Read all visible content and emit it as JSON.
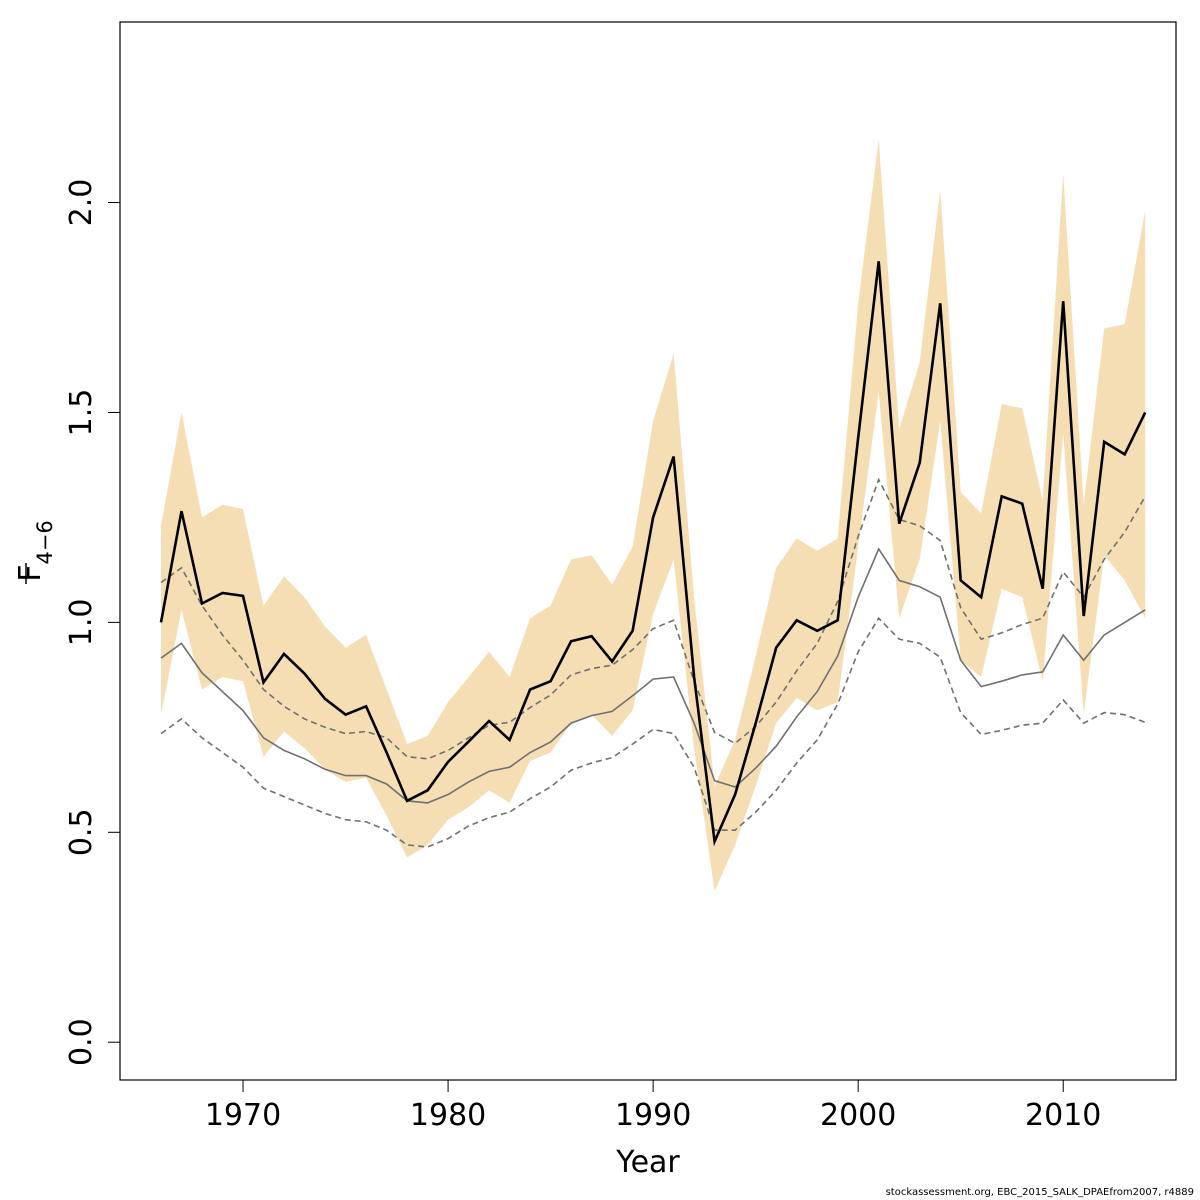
{
  "chart_data": {
    "type": "line",
    "xlabel": "Year",
    "ylabel": "F",
    "ylabel_subscript": "4−6",
    "xlim": [
      1964,
      2015.5
    ],
    "ylim": [
      -0.09,
      2.43
    ],
    "x_ticks": [
      1970,
      1980,
      1990,
      2000,
      2010
    ],
    "y_ticks": [
      0.0,
      0.5,
      1.0,
      1.5,
      2.0
    ],
    "x_tick_labels": [
      "1970",
      "1980",
      "1990",
      "2000",
      "2010"
    ],
    "y_tick_labels": [
      "0.0",
      "0.5",
      "1.0",
      "1.5",
      "2.0"
    ],
    "grid": false,
    "x": [
      1966,
      1967,
      1968,
      1969,
      1970,
      1971,
      1972,
      1973,
      1974,
      1975,
      1976,
      1977,
      1978,
      1979,
      1980,
      1981,
      1982,
      1983,
      1984,
      1985,
      1986,
      1987,
      1988,
      1989,
      1990,
      1991,
      1992,
      1993,
      1994,
      1995,
      1996,
      1997,
      1998,
      1999,
      2000,
      2001,
      2002,
      2003,
      2004,
      2005,
      2006,
      2007,
      2008,
      2009,
      2010,
      2011,
      2012,
      2013,
      2014
    ],
    "series": [
      {
        "role": "estimate",
        "color": "#000000",
        "values": [
          1.0,
          1.265,
          1.045,
          1.07,
          1.063,
          0.857,
          0.925,
          0.878,
          0.818,
          0.78,
          0.8,
          0.69,
          0.575,
          0.6,
          0.668,
          0.716,
          0.765,
          0.72,
          0.84,
          0.86,
          0.955,
          0.967,
          0.907,
          0.98,
          1.25,
          1.395,
          0.87,
          0.478,
          0.59,
          0.76,
          0.94,
          1.005,
          0.98,
          1.005,
          1.44,
          1.86,
          1.235,
          1.38,
          1.76,
          1.1,
          1.06,
          1.3,
          1.283,
          1.08,
          1.765,
          1.015,
          1.43,
          1.4,
          1.5
        ]
      },
      {
        "role": "band",
        "color": "#f5deb3",
        "lower": [
          0.78,
          1.03,
          0.84,
          0.87,
          0.86,
          0.68,
          0.74,
          0.7,
          0.65,
          0.62,
          0.63,
          0.54,
          0.44,
          0.47,
          0.53,
          0.56,
          0.6,
          0.57,
          0.67,
          0.69,
          0.76,
          0.78,
          0.73,
          0.79,
          1.02,
          1.15,
          0.7,
          0.36,
          0.47,
          0.61,
          0.76,
          0.82,
          0.79,
          0.81,
          1.18,
          1.55,
          1.01,
          1.15,
          1.48,
          0.91,
          0.87,
          1.08,
          1.06,
          0.86,
          1.45,
          0.78,
          1.16,
          1.1,
          1.01
        ],
        "upper": [
          1.23,
          1.5,
          1.25,
          1.28,
          1.27,
          1.04,
          1.11,
          1.06,
          0.99,
          0.94,
          0.97,
          0.84,
          0.71,
          0.73,
          0.81,
          0.87,
          0.93,
          0.87,
          1.01,
          1.04,
          1.15,
          1.16,
          1.09,
          1.18,
          1.48,
          1.64,
          1.06,
          0.61,
          0.72,
          0.92,
          1.13,
          1.2,
          1.17,
          1.2,
          1.76,
          2.15,
          1.46,
          1.62,
          2.03,
          1.31,
          1.26,
          1.52,
          1.51,
          1.29,
          2.07,
          1.28,
          1.7,
          1.71,
          1.98
        ]
      },
      {
        "role": "reference",
        "color": "#707070",
        "style": "solid",
        "values": [
          0.915,
          0.95,
          0.88,
          0.835,
          0.79,
          0.725,
          0.695,
          0.675,
          0.65,
          0.635,
          0.635,
          0.615,
          0.575,
          0.57,
          0.59,
          0.62,
          0.645,
          0.655,
          0.69,
          0.715,
          0.76,
          0.778,
          0.788,
          0.825,
          0.865,
          0.87,
          0.76,
          0.623,
          0.608,
          0.653,
          0.705,
          0.775,
          0.835,
          0.92,
          1.06,
          1.175,
          1.1,
          1.085,
          1.06,
          0.91,
          0.847,
          0.86,
          0.875,
          0.882,
          0.97,
          0.91,
          0.97,
          1.0,
          1.03
        ]
      },
      {
        "role": "reference-upper",
        "color": "#707070",
        "style": "dashed",
        "values": [
          1.095,
          1.13,
          1.04,
          0.97,
          0.91,
          0.84,
          0.8,
          0.77,
          0.75,
          0.735,
          0.74,
          0.725,
          0.68,
          0.675,
          0.695,
          0.725,
          0.755,
          0.762,
          0.797,
          0.827,
          0.875,
          0.89,
          0.898,
          0.935,
          0.985,
          1.005,
          0.86,
          0.738,
          0.712,
          0.752,
          0.81,
          0.885,
          0.95,
          1.05,
          1.205,
          1.34,
          1.245,
          1.23,
          1.195,
          1.035,
          0.96,
          0.975,
          0.995,
          1.01,
          1.12,
          1.06,
          1.15,
          1.215,
          1.3
        ]
      },
      {
        "role": "reference-lower",
        "color": "#707070",
        "style": "dashed",
        "values": [
          0.735,
          0.77,
          0.725,
          0.69,
          0.655,
          0.605,
          0.585,
          0.565,
          0.545,
          0.53,
          0.525,
          0.505,
          0.47,
          0.465,
          0.485,
          0.515,
          0.535,
          0.548,
          0.58,
          0.608,
          0.648,
          0.665,
          0.678,
          0.71,
          0.745,
          0.735,
          0.655,
          0.505,
          0.505,
          0.548,
          0.6,
          0.665,
          0.72,
          0.805,
          0.93,
          1.01,
          0.96,
          0.95,
          0.917,
          0.785,
          0.733,
          0.743,
          0.755,
          0.76,
          0.815,
          0.76,
          0.785,
          0.78,
          0.762
        ]
      }
    ]
  },
  "footer": {
    "text": "stockassessment.org, EBC_2015_SALK_DPAEfrom2007, r4889"
  }
}
